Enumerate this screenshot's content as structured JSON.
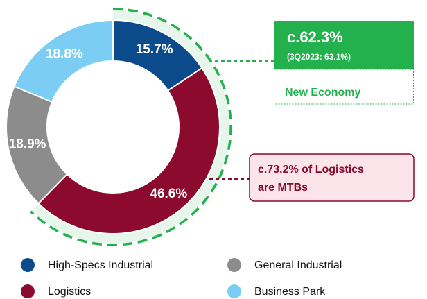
{
  "chart_data": {
    "type": "pie",
    "categories": [
      "High-Specs Industrial",
      "Logistics",
      "General Industrial",
      "Business Park"
    ],
    "values": [
      15.7,
      46.6,
      18.9,
      18.8
    ],
    "value_labels": [
      "15.7%",
      "46.6%",
      "18.9%",
      "18.8%"
    ],
    "colors": [
      "#0b4a8b",
      "#8b0a2e",
      "#8c8c8c",
      "#7ccdf3"
    ],
    "annotations": {
      "new_economy": {
        "value": "c.62.3%",
        "previous": "(3Q2023: 63.1%)",
        "label": "New Economy"
      },
      "logistics_note": [
        "c.73.2% of Logistics",
        "are MTBs"
      ]
    }
  }
}
